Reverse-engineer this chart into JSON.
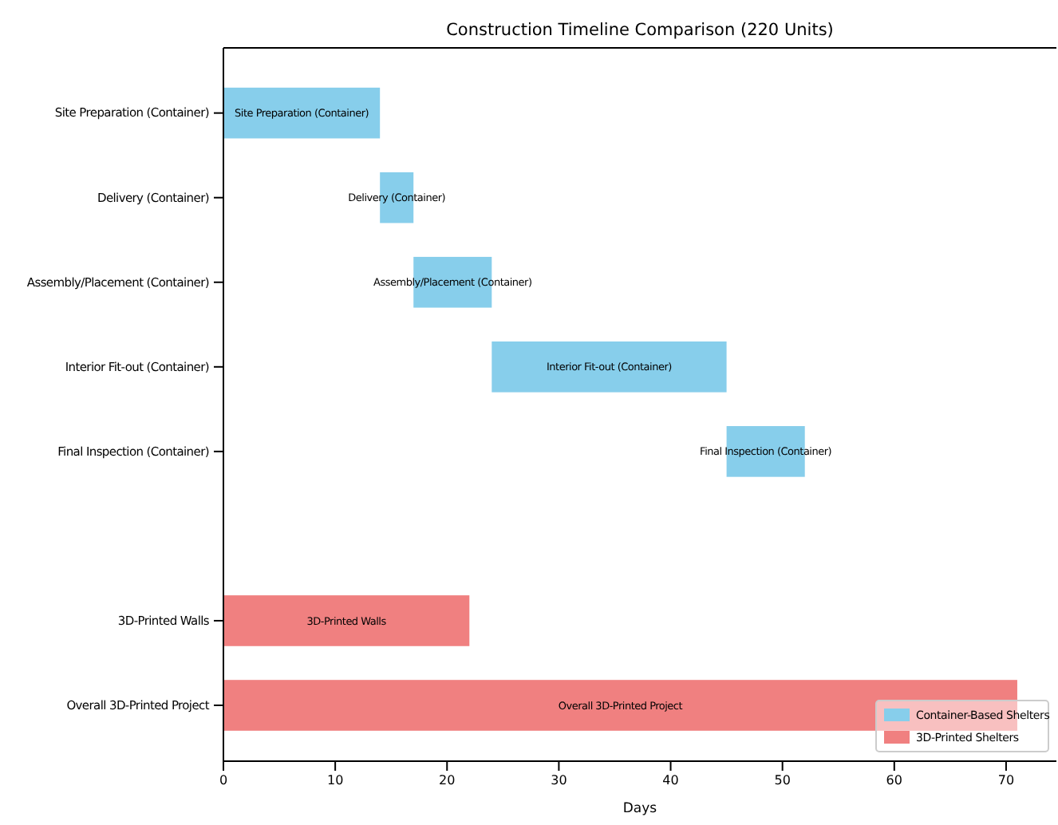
{
  "chart_data": {
    "type": "bar",
    "orientation": "horizontal",
    "title": "Construction Timeline Comparison (220 Units)",
    "xlabel": "Days",
    "categories": [
      "Site Preparation (Container)",
      "Delivery (Container)",
      "Assembly/Placement (Container)",
      "Interior Fit-out (Container)",
      "Final Inspection (Container)",
      null,
      "3D-Printed Walls",
      "Overall 3D-Printed Project"
    ],
    "series": [
      {
        "name": "Container-Based Shelters",
        "color": "#87ceeb",
        "base": [
          0,
          14,
          17,
          24,
          45,
          null,
          null,
          null
        ],
        "values": [
          14,
          3,
          7,
          21,
          7,
          null,
          null,
          null
        ]
      },
      {
        "name": "3D-Printed Shelters",
        "color": "#f08080",
        "base": [
          null,
          null,
          null,
          null,
          null,
          null,
          0,
          0
        ],
        "values": [
          null,
          null,
          null,
          null,
          null,
          null,
          22,
          71
        ]
      }
    ],
    "annotations": [
      "Site Preparation (Container)",
      "Delivery (Container)",
      "Assembly/Placement (Container)",
      "Interior Fit-out (Container)",
      "Final Inspection (Container)",
      "3D-Printed Walls",
      "Overall 3D-Printed Project"
    ],
    "xlim": [
      0,
      74.5
    ],
    "xticks": [
      0,
      10,
      20,
      30,
      40,
      50,
      60,
      70
    ],
    "grid": false,
    "legend": "bottom right"
  }
}
